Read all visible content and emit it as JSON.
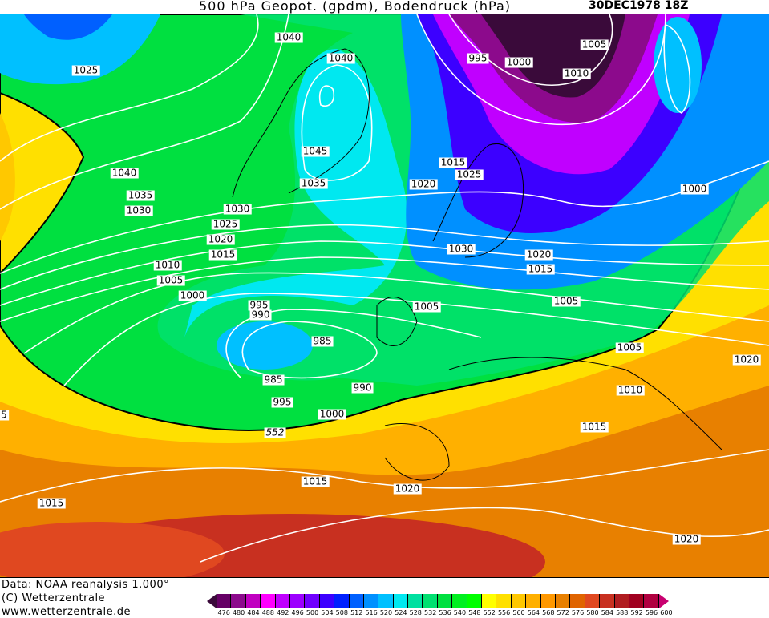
{
  "header": {
    "title": "500 hPa Geopot. (gpdm), Bodendruck (hPa)",
    "datetime": "30DEC1978 18Z"
  },
  "footer": {
    "data_source": "Data: NOAA reanalysis 1.000°",
    "copyright": "(C) Wetterzentrale",
    "website": "www.wetterzentrale.de"
  },
  "map": {
    "isobar_labels": [
      "1040",
      "1040",
      "1025",
      "995",
      "1000",
      "1005",
      "1010",
      "1045",
      "1035",
      "1040",
      "1035",
      "1030",
      "1030",
      "1025",
      "1020",
      "1015",
      "1015",
      "1025",
      "1020",
      "1000",
      "1030",
      "1020",
      "1015",
      "1010",
      "1005",
      "1000",
      "995",
      "990",
      "1005",
      "1005",
      "985",
      "1005",
      "1020",
      "985",
      "990",
      "1010",
      "995",
      "1000",
      "1015",
      "1015",
      "1020",
      "1015",
      "1020",
      "5"
    ],
    "geopotential_label": "552",
    "isobar_color": "#ffffff"
  },
  "legend": {
    "unit": "gpdm",
    "ticks": [
      "476",
      "480",
      "484",
      "488",
      "492",
      "496",
      "500",
      "504",
      "508",
      "512",
      "516",
      "520",
      "524",
      "528",
      "532",
      "536",
      "540",
      "548",
      "552",
      "556",
      "560",
      "564",
      "568",
      "572",
      "576",
      "580",
      "584",
      "588",
      "592",
      "596",
      "600"
    ],
    "low_tip_color": "#3a0a3a",
    "high_tip_color": "#c80070",
    "colors": [
      "#660066",
      "#8c0a8c",
      "#c000c0",
      "#ff00ff",
      "#c000ff",
      "#9c00ff",
      "#7000ff",
      "#3c00ff",
      "#0020ff",
      "#0060ff",
      "#0090ff",
      "#00c0ff",
      "#00e8f0",
      "#00e0a0",
      "#00e070",
      "#00e040",
      "#00f020",
      "#00ff00",
      "#ffff00",
      "#ffe000",
      "#ffc800",
      "#ffb000",
      "#ff9800",
      "#e88000",
      "#e06400",
      "#e04820",
      "#c83020",
      "#b01c20",
      "#a00020",
      "#b00040"
    ]
  }
}
